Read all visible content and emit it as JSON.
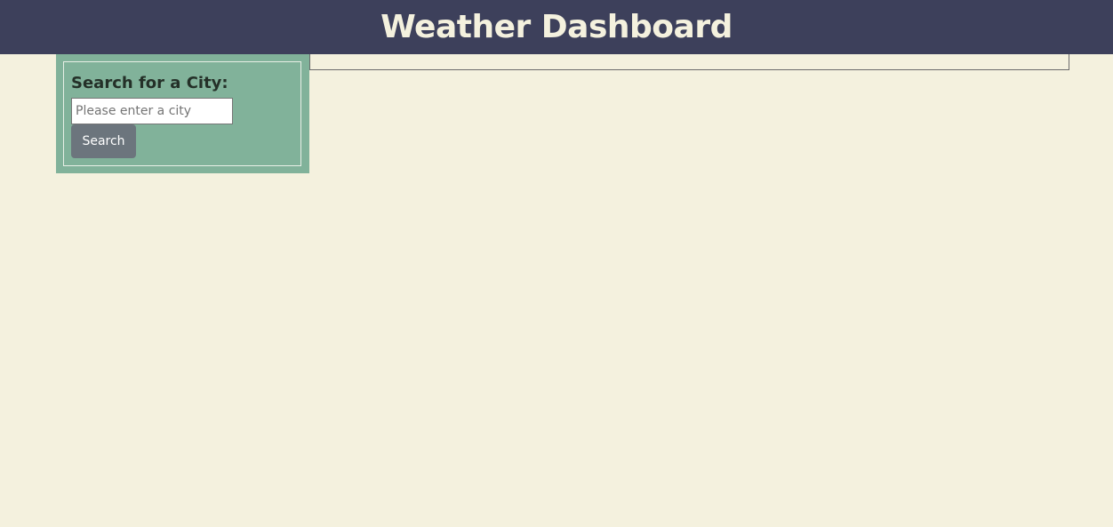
{
  "header": {
    "title": "Weather Dashboard"
  },
  "sidebar": {
    "heading": "Search for a City:",
    "search_input": {
      "value": "",
      "placeholder": "Please enter a city"
    },
    "search_button_label": "Search"
  },
  "colors": {
    "header_bg": "#3d405b",
    "page_bg": "#f4f1de",
    "sidebar_bg": "#81b29a",
    "button_bg": "#6c757d"
  }
}
